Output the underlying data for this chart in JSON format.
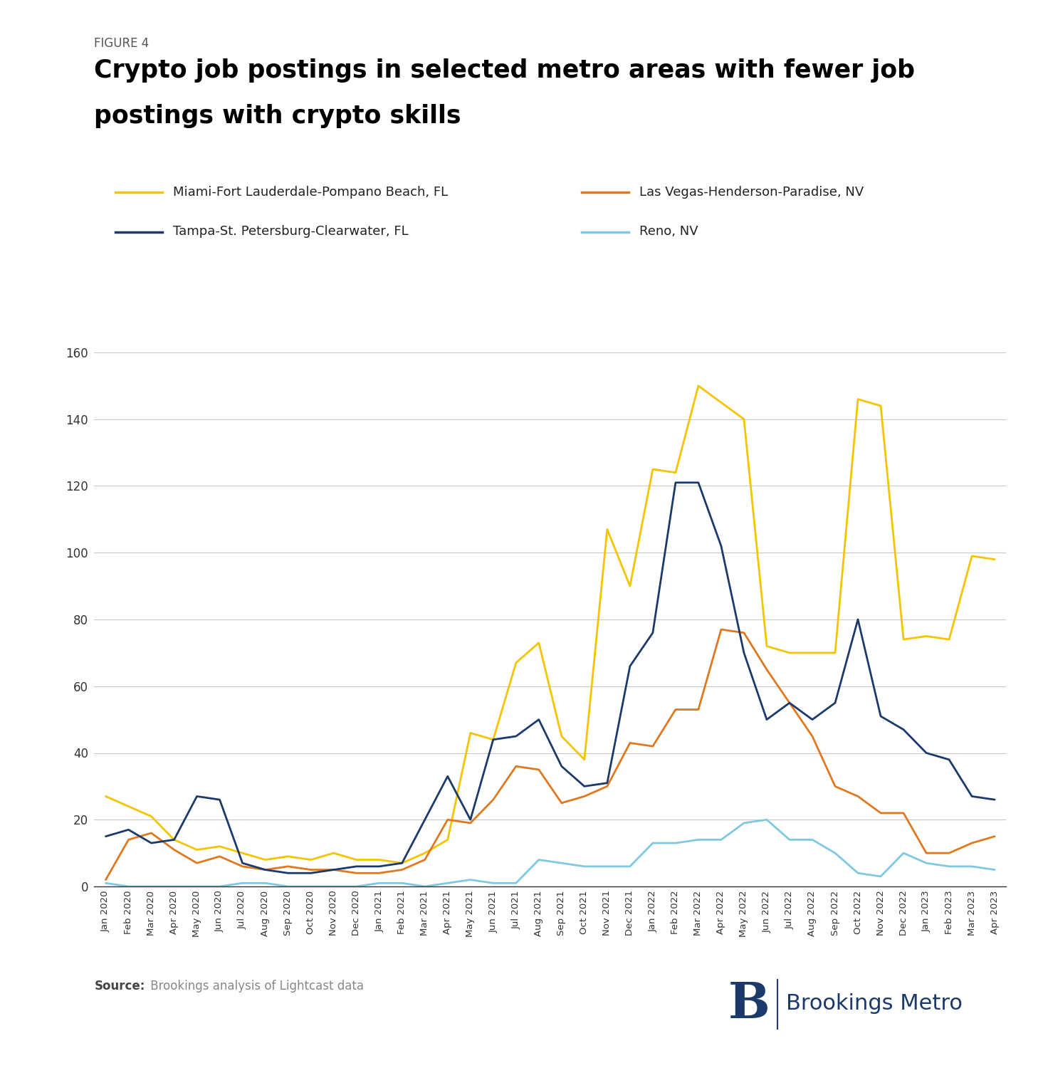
{
  "figure_label": "FIGURE 4",
  "title_line1": "Crypto job postings in selected metro areas with fewer job",
  "title_line2": "postings with crypto skills",
  "source_bold": "Source:",
  "source_rest": " Brookings analysis of Lightcast data",
  "ylim": [
    0,
    160
  ],
  "yticks": [
    0,
    20,
    40,
    60,
    80,
    100,
    120,
    140,
    160
  ],
  "x_labels": [
    "Jan 2020",
    "Feb 2020",
    "Mar 2020",
    "Apr 2020",
    "May 2020",
    "Jun 2020",
    "Jul 2020",
    "Aug 2020",
    "Sep 2020",
    "Oct 2020",
    "Nov 2020",
    "Dec 2020",
    "Jan 2021",
    "Feb 2021",
    "Mar 2021",
    "Apr 2021",
    "May 2021",
    "Jun 2021",
    "Jul 2021",
    "Aug 2021",
    "Sep 2021",
    "Oct 2021",
    "Nov 2021",
    "Dec 2021",
    "Jan 2022",
    "Feb 2022",
    "Mar 2022",
    "Apr 2022",
    "May 2022",
    "Jun 2022",
    "Jul 2022",
    "Aug 2022",
    "Sep 2022",
    "Oct 2022",
    "Nov 2022",
    "Dec 2022",
    "Jan 2023",
    "Feb 2023",
    "Mar 2023",
    "Apr 2023"
  ],
  "series": [
    {
      "label": "Miami-Fort Lauderdale-Pompano Beach, FL",
      "color": "#F5C400",
      "values": [
        27,
        24,
        21,
        14,
        11,
        12,
        10,
        8,
        9,
        8,
        10,
        8,
        8,
        7,
        10,
        14,
        46,
        44,
        67,
        73,
        45,
        38,
        107,
        90,
        125,
        124,
        150,
        145,
        140,
        72,
        70,
        70,
        70,
        146,
        144,
        74,
        75,
        74,
        99,
        98
      ]
    },
    {
      "label": "Las Vegas-Henderson-Paradise, NV",
      "color": "#E07820",
      "values": [
        2,
        14,
        16,
        11,
        7,
        9,
        6,
        5,
        6,
        5,
        5,
        4,
        4,
        5,
        8,
        20,
        19,
        26,
        36,
        35,
        25,
        27,
        30,
        43,
        42,
        53,
        53,
        77,
        76,
        65,
        55,
        45,
        30,
        27,
        22,
        22,
        10,
        10,
        13,
        15
      ]
    },
    {
      "label": "Tampa-St. Petersburg-Clearwater, FL",
      "color": "#1B3A6B",
      "values": [
        15,
        17,
        13,
        14,
        27,
        26,
        7,
        5,
        4,
        4,
        5,
        6,
        6,
        7,
        20,
        33,
        20,
        44,
        45,
        50,
        36,
        30,
        31,
        66,
        76,
        121,
        121,
        102,
        70,
        50,
        55,
        50,
        55,
        80,
        51,
        47,
        40,
        38,
        27,
        26
      ]
    },
    {
      "label": "Reno, NV",
      "color": "#7EC8E3",
      "values": [
        1,
        0,
        0,
        0,
        0,
        0,
        1,
        1,
        0,
        0,
        0,
        0,
        1,
        1,
        0,
        1,
        2,
        1,
        1,
        8,
        7,
        6,
        6,
        6,
        13,
        13,
        14,
        14,
        19,
        20,
        14,
        14,
        10,
        4,
        3,
        10,
        7,
        6,
        6,
        5
      ]
    }
  ],
  "background_color": "#FFFFFF",
  "grid_color": "#C8C8C8",
  "spine_color": "#333333",
  "tick_label_color": "#333333",
  "figure_label_color": "#555555",
  "title_color": "#000000",
  "legend_text_color": "#222222",
  "brookings_color": "#1B3A6B"
}
